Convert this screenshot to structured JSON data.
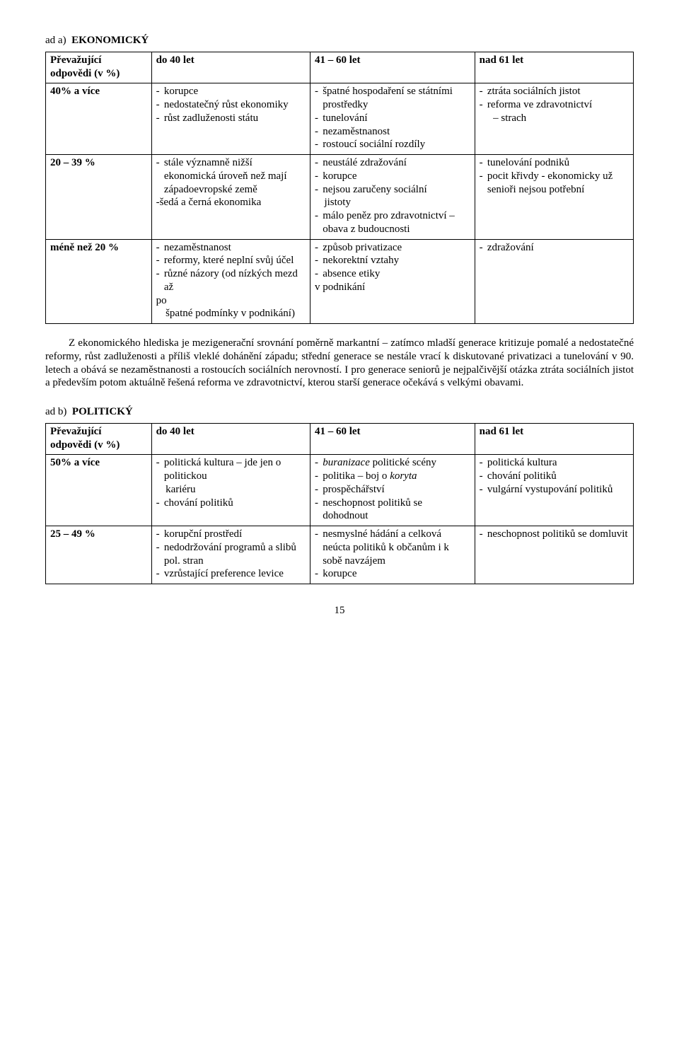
{
  "sectionA": {
    "label_prefix": "ad a)",
    "label_main": "EKONOMICKÝ",
    "headerRow": {
      "rowLabel1": "Převažující",
      "rowLabel2": "odpovědi (v %)",
      "h1": "do 40 let",
      "h2": "41 – 60 let",
      "h3": "nad 61 let"
    },
    "rows": [
      {
        "label": "40% a více",
        "c1": [
          "korupce",
          "nedostatečný růst ekonomiky",
          "růst zadluženosti státu"
        ],
        "c2": [
          "špatné hospodaření se státními prostředky",
          "tunelování",
          "nezaměstnanost",
          "rostoucí sociální rozdíly"
        ],
        "c3": [
          "ztráta sociálních jistot",
          "reforma ve zdravotnictví"
        ],
        "c3_sub": "strach"
      },
      {
        "label": "20 – 39 %",
        "c1": [
          "stále významně nižší ekonomická úroveň než mají západoevropské země"
        ],
        "c1_extra": "-šedá a černá ekonomika",
        "c2": [
          "neustálé zdražování",
          "korupce",
          "nejsou zaručeny sociální"
        ],
        "c2_cont1": "jistoty",
        "c2_item4": "málo peněz pro zdravotnictví – obava z budoucnosti",
        "c3": [
          "tunelování podniků",
          "pocit křivdy - ekonomicky už senioři nejsou potřební"
        ]
      },
      {
        "label": "méně než 20 %",
        "c1": [
          "nezaměstnanost",
          "reformy, které neplní svůj účel",
          "různé názory (od nízkých mezd až"
        ],
        "c1_tail1": "po",
        "c1_tail2": "špatné podmínky v podnikání)",
        "c2": [
          "způsob privatizace",
          "nekorektní vztahy",
          "absence etiky"
        ],
        "c2_tail": "v podnikání",
        "c3": [
          "zdražování"
        ]
      }
    ]
  },
  "paragraph": {
    "text": "Z ekonomického hlediska je mezigenerační srovnání poměrně markantní – zatímco mladší generace kritizuje pomalé a nedostatečné reformy, růst zadluženosti a příliš vleklé dohánění západu; střední generace se nestále vrací k diskutované privatizaci a tunelování  v 90. letech a obává se nezaměstnanosti a rostoucích sociálních nerovností. I pro generace seniorů je nejpalčivější otázka ztráta sociálních jistot a především potom aktuálně řešená reforma ve zdravotnictví, kterou starší generace očekává s velkými obavami."
  },
  "sectionB": {
    "label_prefix": "ad b)",
    "label_main": "POLITICKÝ",
    "headerRow": {
      "rowLabel1": "Převažující",
      "rowLabel2": "odpovědi (v %)",
      "h1": "do 40 let",
      "h2": "41 – 60 let",
      "h3": "nad 61 let"
    },
    "rows": [
      {
        "label": "50% a více",
        "c1": [
          "politická kultura – jde jen o politickou"
        ],
        "c1_cont": "kariéru",
        "c1_item2": "chování politiků",
        "c2_pre": "buranizace",
        "c2_post": " politické scény",
        "c2_rest": [
          "politika – boj o ",
          "koryta"
        ],
        "c2_item3": "prospěchářství",
        "c2_item4": "neschopnost politiků se dohodnout",
        "c3": [
          "politická kultura",
          "chování politiků",
          "vulgární vystupování politiků"
        ]
      },
      {
        "label": "25 – 49 %",
        "c1": [
          "korupční prostředí",
          "nedodržování programů a slibů pol. stran",
          "vzrůstající preference levice"
        ],
        "c2": [
          "nesmyslné hádání a celková neúcta politiků k občanům i k sobě navzájem",
          "korupce"
        ],
        "c3": [
          "neschopnost politiků se domluvit"
        ]
      }
    ]
  },
  "pageNumber": "15"
}
